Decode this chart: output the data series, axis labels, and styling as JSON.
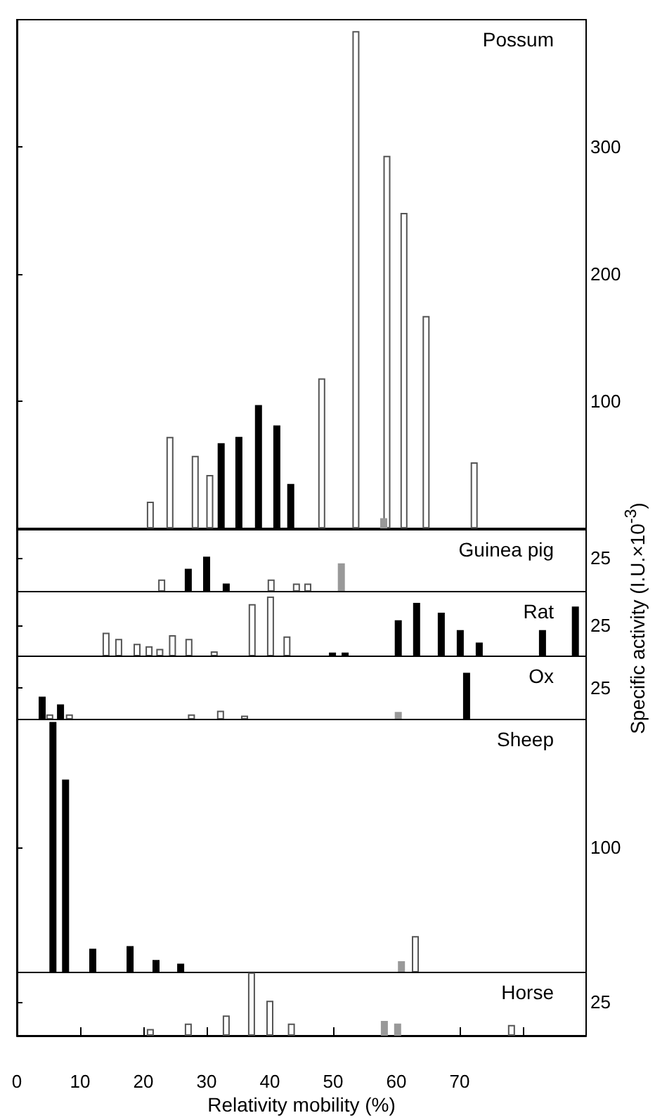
{
  "chart_data": [
    {
      "type": "bar",
      "title": "Possum",
      "xlim": [
        0,
        90
      ],
      "ylim": [
        0,
        400
      ],
      "yticks": [
        100,
        200,
        300
      ],
      "tick_labels": "y",
      "series": [
        {
          "color": "#ffffff",
          "x": [
            21.1,
            24.2,
            28.2,
            30.5,
            48.2,
            53.6,
            58.5,
            61.2,
            64.7,
            72.3
          ],
          "values": [
            21,
            72,
            57,
            42,
            118,
            391,
            293,
            248,
            167,
            52
          ]
        },
        {
          "color": "#000000",
          "x": [
            32.3,
            35.1,
            38.2,
            41.1,
            43.3
          ],
          "values": [
            67,
            72,
            97,
            81,
            35
          ]
        },
        {
          "color": "#999999",
          "x": [
            58.0
          ],
          "values": [
            8
          ]
        }
      ]
    },
    {
      "type": "bar",
      "title": "Guinea pig",
      "xlim": [
        0,
        90
      ],
      "ylim": [
        0,
        46
      ],
      "yticks": [
        25
      ],
      "tick_labels": "y",
      "series": [
        {
          "color": "#ffffff",
          "x": [
            22.9,
            40.2,
            44.2,
            46.0
          ],
          "values": [
            9,
            9,
            6,
            6
          ]
        },
        {
          "color": "#000000",
          "x": [
            27.1,
            30.0,
            33.1
          ],
          "values": [
            17,
            26,
            6
          ]
        },
        {
          "color": "#999999",
          "x": [
            51.3
          ],
          "values": [
            21
          ]
        }
      ]
    },
    {
      "type": "bar",
      "title": "Rat",
      "xlim": [
        0,
        90
      ],
      "ylim": [
        0,
        52
      ],
      "yticks": [
        25
      ],
      "tick_labels": "y",
      "series": [
        {
          "color": "#ffffff",
          "x": [
            14.1,
            16.1,
            19.0,
            20.9,
            22.6,
            24.6,
            27.2,
            31.2,
            37.2,
            40.1,
            42.7
          ],
          "values": [
            19,
            14,
            10,
            8,
            6,
            17,
            14,
            4,
            42,
            48,
            16
          ]
        },
        {
          "color": "#000000",
          "x": [
            49.9,
            51.9,
            60.3,
            63.2,
            67.1,
            70.1,
            73.1,
            83.1,
            88.3
          ],
          "values": [
            3,
            3,
            29,
            43,
            35,
            21,
            11,
            21,
            40
          ]
        }
      ]
    },
    {
      "type": "bar",
      "title": "Ox",
      "ylabel": "Specific activity (I.U.×10$^{-3}$)",
      "xlim": [
        0,
        90
      ],
      "ylim": [
        0,
        50
      ],
      "yticks": [
        25
      ],
      "tick_labels": "y",
      "series": [
        {
          "color": "#ffffff",
          "x": [
            5.2,
            8.3,
            27.6,
            32.2,
            36.0
          ],
          "values": [
            4,
            4,
            4,
            7,
            3
          ]
        },
        {
          "color": "#000000",
          "x": [
            4.0,
            6.9,
            71.1
          ],
          "values": [
            18,
            12,
            37
          ]
        },
        {
          "color": "#999999",
          "x": [
            60.3
          ],
          "values": [
            6
          ]
        }
      ]
    },
    {
      "type": "bar",
      "title": "Sheep",
      "xlim": [
        0,
        90
      ],
      "ylim": [
        0,
        202
      ],
      "yticks": [
        100
      ],
      "tick_labels": "y",
      "series": [
        {
          "color": "#ffffff",
          "x": [
            63.0
          ],
          "values": [
            29
          ]
        },
        {
          "color": "#000000",
          "x": [
            5.7,
            7.7,
            12.0,
            17.9,
            22.0,
            25.9
          ],
          "values": [
            200,
            154,
            19,
            21,
            10,
            7
          ]
        },
        {
          "color": "#999999",
          "x": [
            60.8
          ],
          "values": [
            9
          ]
        }
      ]
    },
    {
      "type": "bar",
      "title": "Horse",
      "xlabel": "Relativity mobility (%)",
      "xlim": [
        0,
        90
      ],
      "xticks": [
        0,
        10,
        20,
        30,
        40,
        50,
        60,
        70,
        {
          "value": 80,
          "label": null
        }
      ],
      "ylim": [
        0,
        47
      ],
      "yticks": [
        25
      ],
      "series": [
        {
          "color": "#ffffff",
          "x": [
            21.1,
            27.1,
            33.1,
            37.1,
            40.0,
            43.4,
            78.2
          ],
          "values": [
            5,
            9,
            15,
            47,
            26,
            9,
            8
          ]
        },
        {
          "color": "#999999",
          "x": [
            58.1,
            60.2
          ],
          "values": [
            11,
            9
          ]
        }
      ]
    }
  ]
}
